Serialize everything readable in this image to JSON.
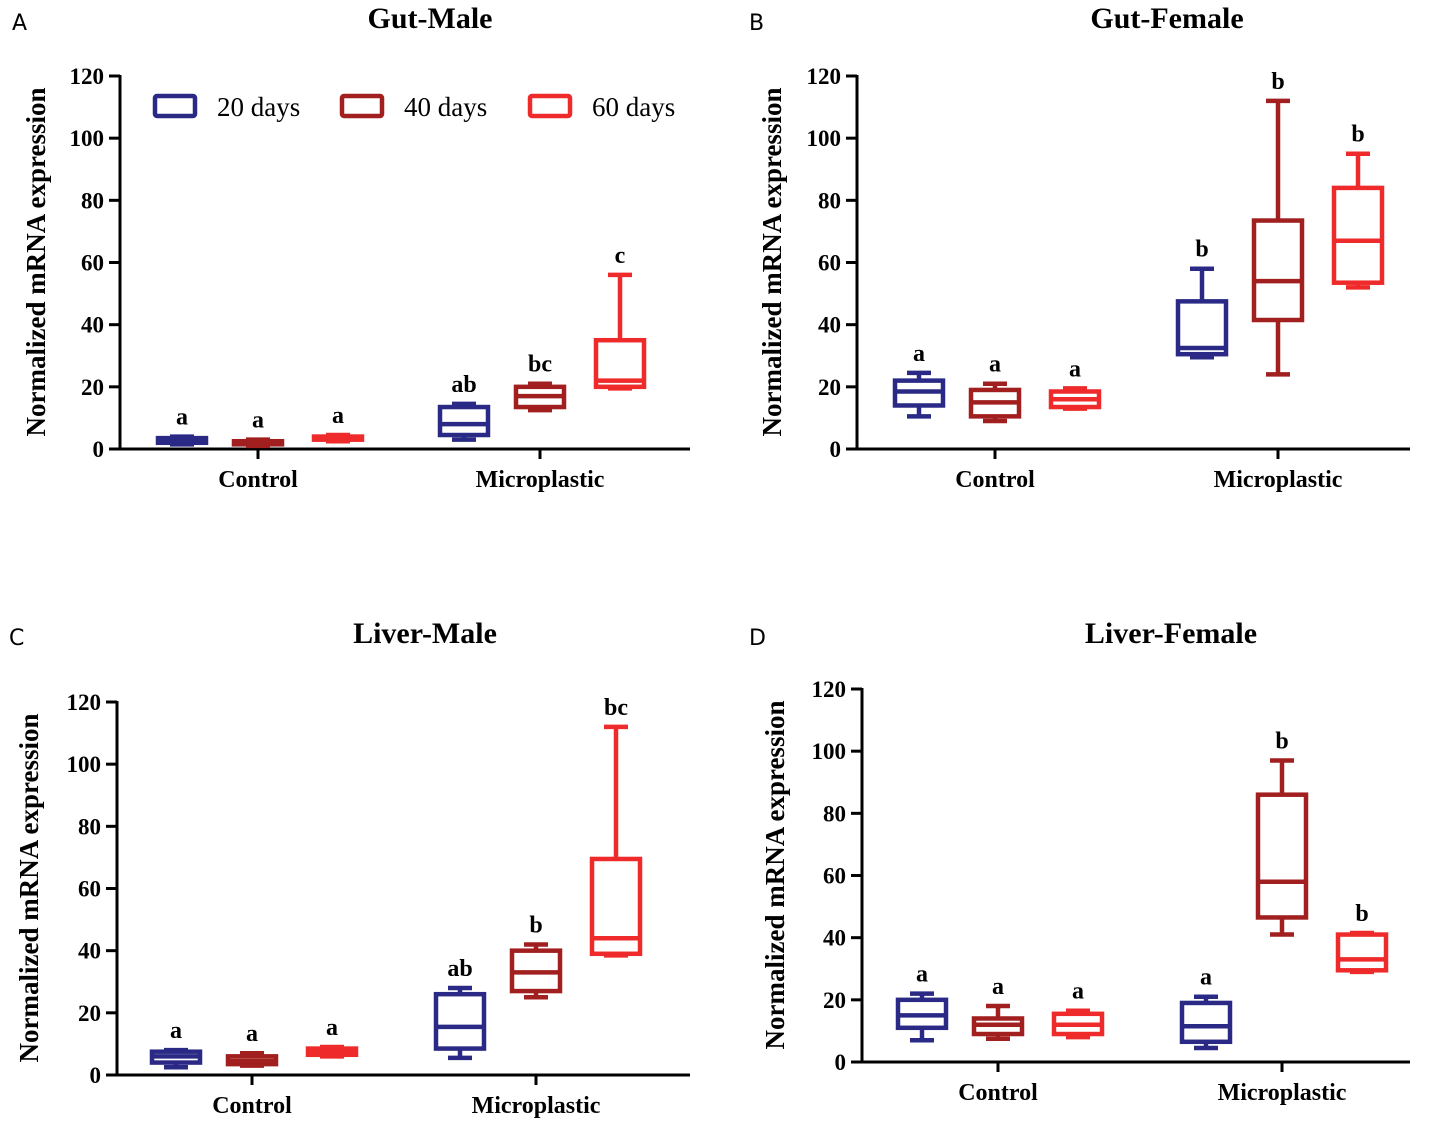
{
  "colors": {
    "20 days": "#2a2a86",
    "40 days": "#a11f1f",
    "60 days": "#ef2a2a"
  },
  "legend": [
    "20 days",
    "40 days",
    "60 days"
  ],
  "chart_data": [
    {
      "panel": "A",
      "type": "box",
      "title": "Gut-Male",
      "ylabel": "Normalized mRNA expression",
      "ylim": [
        0,
        120
      ],
      "yticks": [
        "0",
        "20",
        "40",
        "60",
        "80",
        "100",
        "120"
      ],
      "categories": [
        "Control",
        "Microplastic"
      ],
      "series": [
        {
          "name": "20 days",
          "boxes": [
            {
              "min": 1.5,
              "q1": 2,
              "median": 2.5,
              "q3": 3.5,
              "max": 4,
              "sig": "a"
            },
            {
              "min": 3,
              "q1": 4.5,
              "median": 8,
              "q3": 13.5,
              "max": 14.5,
              "sig": "ab"
            }
          ]
        },
        {
          "name": "40 days",
          "boxes": [
            {
              "min": 1,
              "q1": 1.5,
              "median": 2,
              "q3": 2.5,
              "max": 3,
              "sig": "a"
            },
            {
              "min": 12.5,
              "q1": 13.5,
              "median": 17,
              "q3": 20,
              "max": 21,
              "sig": "bc"
            }
          ]
        },
        {
          "name": "60 days",
          "boxes": [
            {
              "min": 2.5,
              "q1": 3,
              "median": 3.5,
              "q3": 4,
              "max": 4.5,
              "sig": "a"
            },
            {
              "min": 19.5,
              "q1": 20,
              "median": 22,
              "q3": 35,
              "max": 56,
              "sig": "c"
            }
          ]
        }
      ]
    },
    {
      "panel": "B",
      "type": "box",
      "title": "Gut-Female",
      "ylabel": "Normalized mRNA expression",
      "ylim": [
        0,
        120
      ],
      "yticks": [
        "0",
        "20",
        "40",
        "60",
        "80",
        "100",
        "120"
      ],
      "categories": [
        "Control",
        "Microplastic"
      ],
      "series": [
        {
          "name": "20 days",
          "boxes": [
            {
              "min": 10.5,
              "q1": 14,
              "median": 18.5,
              "q3": 22,
              "max": 24.5,
              "sig": "a"
            },
            {
              "min": 29.5,
              "q1": 30.5,
              "median": 32.5,
              "q3": 47.5,
              "max": 58,
              "sig": "b"
            }
          ]
        },
        {
          "name": "40 days",
          "boxes": [
            {
              "min": 9,
              "q1": 10.5,
              "median": 15,
              "q3": 19,
              "max": 21,
              "sig": "a"
            },
            {
              "min": 24,
              "q1": 41.5,
              "median": 54,
              "q3": 73.5,
              "max": 112,
              "sig": "b"
            }
          ]
        },
        {
          "name": "60 days",
          "boxes": [
            {
              "min": 13,
              "q1": 13.5,
              "median": 16,
              "q3": 18.5,
              "max": 19.5,
              "sig": "a"
            },
            {
              "min": 52,
              "q1": 53.5,
              "median": 67,
              "q3": 84,
              "max": 95,
              "sig": "b"
            }
          ]
        }
      ]
    },
    {
      "panel": "C",
      "type": "box",
      "title": "Liver-Male",
      "ylabel": "Normalized mRNA expression",
      "ylim": [
        0,
        120
      ],
      "yticks": [
        "0",
        "20",
        "40",
        "60",
        "80",
        "100",
        "120"
      ],
      "categories": [
        "Control",
        "Microplastic"
      ],
      "series": [
        {
          "name": "20 days",
          "boxes": [
            {
              "min": 2.5,
              "q1": 4,
              "median": 6,
              "q3": 7.5,
              "max": 8,
              "sig": "a"
            },
            {
              "min": 5.5,
              "q1": 8.5,
              "median": 15.5,
              "q3": 26,
              "max": 28,
              "sig": "ab"
            }
          ]
        },
        {
          "name": "40 days",
          "boxes": [
            {
              "min": 3,
              "q1": 3.5,
              "median": 4.5,
              "q3": 6,
              "max": 7,
              "sig": "a"
            },
            {
              "min": 25,
              "q1": 27,
              "median": 33,
              "q3": 40,
              "max": 42,
              "sig": "b"
            }
          ]
        },
        {
          "name": "60 days",
          "boxes": [
            {
              "min": 6,
              "q1": 6.5,
              "median": 7.5,
              "q3": 8.5,
              "max": 9,
              "sig": "a"
            },
            {
              "min": 38.5,
              "q1": 39,
              "median": 44,
              "q3": 69.5,
              "max": 112,
              "sig": "bc"
            }
          ]
        }
      ]
    },
    {
      "panel": "D",
      "type": "box",
      "title": "Liver-Female",
      "ylabel": "Normalized mRNA expression",
      "ylim": [
        0,
        120
      ],
      "yticks": [
        "0",
        "20",
        "40",
        "60",
        "80",
        "100",
        "120"
      ],
      "categories": [
        "Control",
        "Microplastic"
      ],
      "series": [
        {
          "name": "20 days",
          "boxes": [
            {
              "min": 7,
              "q1": 11,
              "median": 15,
              "q3": 20,
              "max": 22,
              "sig": "a"
            },
            {
              "min": 4.5,
              "q1": 6.5,
              "median": 11.5,
              "q3": 19,
              "max": 21,
              "sig": "a"
            }
          ]
        },
        {
          "name": "40 days",
          "boxes": [
            {
              "min": 7.5,
              "q1": 9,
              "median": 12,
              "q3": 14,
              "max": 18,
              "sig": "a"
            },
            {
              "min": 41,
              "q1": 46.5,
              "median": 58,
              "q3": 86,
              "max": 97,
              "sig": "b"
            }
          ]
        },
        {
          "name": "60 days",
          "boxes": [
            {
              "min": 8,
              "q1": 9,
              "median": 12,
              "q3": 15.5,
              "max": 16.5,
              "sig": "a"
            },
            {
              "min": 29,
              "q1": 29.5,
              "median": 33,
              "q3": 41,
              "max": 41.5,
              "sig": "b"
            }
          ]
        }
      ]
    }
  ]
}
